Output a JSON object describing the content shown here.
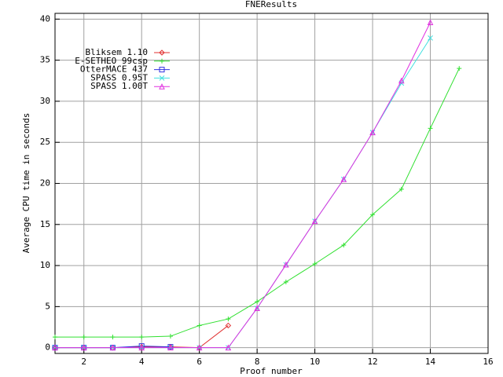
{
  "chart_data": {
    "type": "line",
    "title": "FNEResults",
    "xlabel": "Proof number",
    "ylabel": "Average CPU time in seconds",
    "xlim": [
      1,
      16
    ],
    "ylim": [
      -0.7,
      40.7
    ],
    "xticks": [
      2,
      4,
      6,
      8,
      10,
      12,
      14,
      16
    ],
    "yticks": [
      0,
      5,
      10,
      15,
      20,
      25,
      30,
      35,
      40
    ],
    "grid": true,
    "legend": "upper-left",
    "series": [
      {
        "name": "Bliksem 1.10",
        "color": "#e03030",
        "marker": "diamond",
        "x": [
          1,
          2,
          3,
          4,
          5,
          6,
          7
        ],
        "values": [
          0,
          0,
          0,
          0.1,
          0.1,
          0,
          2.7
        ]
      },
      {
        "name": "E-SETHEO 99csp",
        "color": "#30e030",
        "marker": "plus",
        "x": [
          1,
          2,
          3,
          4,
          5,
          6,
          7,
          8,
          9,
          10,
          11,
          12,
          13,
          14,
          15
        ],
        "values": [
          1.3,
          1.3,
          1.3,
          1.3,
          1.4,
          2.7,
          3.5,
          5.6,
          8.0,
          10.2,
          12.5,
          16.2,
          19.3,
          26.7,
          34.0
        ]
      },
      {
        "name": "OtterMACE 437",
        "color": "#3030e0",
        "marker": "square",
        "x": [
          1,
          2,
          3,
          4,
          5
        ],
        "values": [
          0,
          0,
          0,
          0.2,
          0.1
        ]
      },
      {
        "name": "SPASS 0.95T",
        "color": "#40e0e0",
        "marker": "cross",
        "x": [
          1,
          2,
          3,
          4,
          5,
          6,
          7,
          8,
          9,
          10,
          11,
          12,
          13,
          14
        ],
        "values": [
          0,
          0,
          0,
          0,
          0,
          0,
          0,
          4.8,
          10.1,
          15.4,
          20.5,
          26.2,
          32.2,
          37.7
        ]
      },
      {
        "name": "SPASS 1.00T",
        "color": "#e030e0",
        "marker": "triangle",
        "x": [
          1,
          2,
          3,
          4,
          5,
          6,
          7,
          8,
          9,
          10,
          11,
          12,
          13,
          14
        ],
        "values": [
          0,
          0,
          0,
          0,
          0,
          0,
          0,
          4.8,
          10.1,
          15.4,
          20.5,
          26.2,
          32.5,
          39.6
        ]
      }
    ]
  }
}
